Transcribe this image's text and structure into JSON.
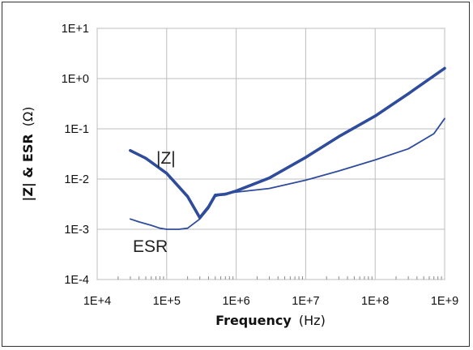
{
  "chart_data": {
    "type": "line",
    "xscale": "log",
    "yscale": "log",
    "xlim": [
      10000,
      1000000000
    ],
    "ylim": [
      0.0001,
      10
    ],
    "x_ticks": [
      "1E+4",
      "1E+5",
      "1E+6",
      "1E+7",
      "1E+8",
      "1E+9"
    ],
    "y_ticks": [
      "1E+1",
      "1E+0",
      "1E-1",
      "1E-2",
      "1E-3",
      "1E-4"
    ],
    "xlabel_bold": "Frequency",
    "xlabel_unit": "(Hz)",
    "ylabel_bold": "|Z| & ESR",
    "ylabel_unit": "(Ω)",
    "grid": true,
    "color": "#2E4B9C",
    "series": [
      {
        "name": "|Z|",
        "x": [
          30000,
          50000,
          100000,
          200000,
          300000,
          400000,
          500000,
          700000,
          1000000,
          3000000,
          10000000,
          30000000,
          100000000,
          300000000,
          1000000000
        ],
        "y": [
          0.037,
          0.026,
          0.013,
          0.0045,
          0.0017,
          0.0028,
          0.0048,
          0.005,
          0.0058,
          0.0105,
          0.027,
          0.07,
          0.18,
          0.5,
          1.6
        ]
      },
      {
        "name": "ESR",
        "x": [
          30000,
          40000,
          60000,
          80000,
          100000,
          150000,
          200000,
          300000,
          400000,
          500000,
          700000,
          1000000,
          3000000,
          10000000,
          30000000,
          100000000,
          300000000,
          700000000,
          1000000000
        ],
        "y": [
          0.0016,
          0.0014,
          0.0012,
          0.00105,
          0.001,
          0.001,
          0.00105,
          0.0016,
          0.0026,
          0.0045,
          0.0052,
          0.0055,
          0.0065,
          0.0095,
          0.0145,
          0.024,
          0.04,
          0.08,
          0.16
        ]
      }
    ],
    "annotations": [
      "|Z|",
      "ESR"
    ]
  }
}
